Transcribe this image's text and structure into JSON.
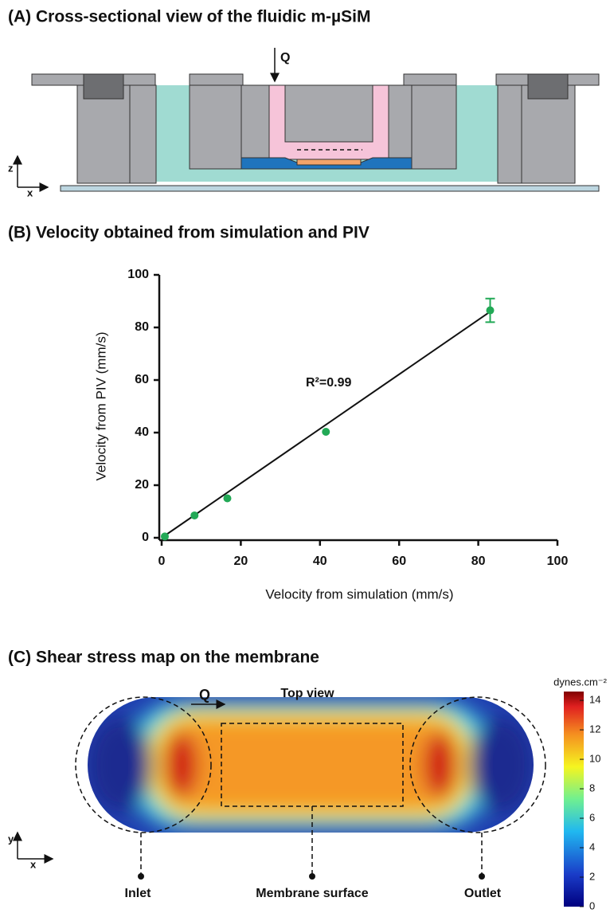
{
  "panel_a": {
    "title": "(A) Cross-sectional view of the fluidic m-µSiM",
    "flow_label": "Q",
    "axis_z": "z",
    "axis_x": "x"
  },
  "chart_data": {
    "type": "scatter",
    "title": "(B) Velocity obtained from simulation and PIV",
    "x_label": "Velocity from simulation (mm/s)",
    "y_label": "Velocity from PIV (mm/s)",
    "annotation": "R²=0.99",
    "x": [
      0.8,
      8.3,
      16.6,
      41.5,
      83
    ],
    "values": [
      0.5,
      8.5,
      15,
      40.3,
      86.5
    ],
    "errors": [
      null,
      null,
      null,
      null,
      4.5
    ],
    "color": "#22a956",
    "fit": {
      "x": [
        0,
        83
      ],
      "y": [
        0,
        86
      ]
    },
    "xlim": [
      0,
      100
    ],
    "ylim": [
      0,
      100
    ],
    "xticks": [
      0,
      20,
      40,
      60,
      80,
      100
    ],
    "yticks": [
      0,
      20,
      40,
      60,
      80,
      100
    ]
  },
  "panel_c": {
    "title": "(C) Shear stress map on the membrane",
    "view_label": "Top view",
    "flow_label": "Q",
    "axis_y": "y",
    "axis_x": "x",
    "inlet": "Inlet",
    "membrane": "Membrane surface",
    "outlet": "Outlet",
    "colorbar": {
      "label": "dynes.cm⁻²",
      "lim": [
        0,
        14.6
      ],
      "ticks": [
        0,
        2,
        4,
        6,
        8,
        10,
        12,
        14
      ]
    }
  }
}
